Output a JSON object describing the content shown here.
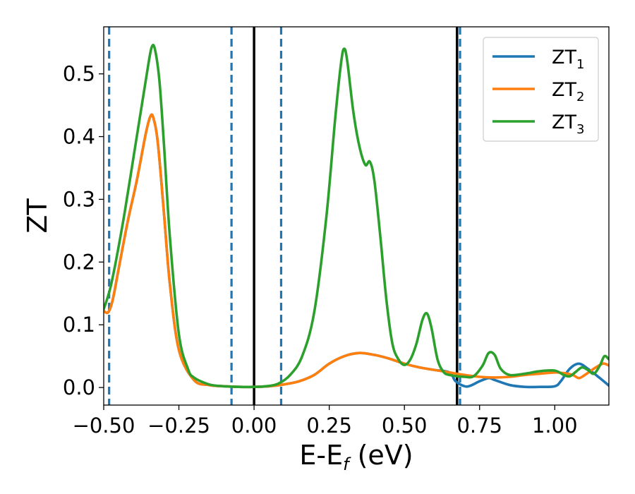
{
  "chart_data": {
    "type": "line",
    "title": "",
    "xlabel": "E-E",
    "xlabel_sub": "f",
    "xlabel_suffix": " (eV)",
    "ylabel": "ZT",
    "xlim": [
      -0.5,
      1.18
    ],
    "ylim": [
      -0.028,
      0.575
    ],
    "x_ticks": [
      -0.5,
      -0.25,
      0.0,
      0.25,
      0.5,
      0.75,
      1.0
    ],
    "x_tick_labels": [
      "−0.50",
      "−0.25",
      "0.00",
      "0.25",
      "0.50",
      "0.75",
      "1.00"
    ],
    "y_ticks": [
      0.0,
      0.1,
      0.2,
      0.3,
      0.4,
      0.5
    ],
    "y_tick_labels": [
      "0.0",
      "0.1",
      "0.2",
      "0.3",
      "0.4",
      "0.5"
    ],
    "grid": false,
    "legend_placement": "top-right",
    "vertical_lines": [
      {
        "x": -0.482,
        "style": "dashed",
        "color": "#1f77b4"
      },
      {
        "x": -0.075,
        "style": "dashed",
        "color": "#1f77b4"
      },
      {
        "x": 0.0,
        "style": "solid",
        "color": "#000000"
      },
      {
        "x": 0.09,
        "style": "dashed",
        "color": "#1f77b4"
      },
      {
        "x": 0.675,
        "style": "solid",
        "color": "#000000"
      },
      {
        "x": 0.685,
        "style": "dashed",
        "color": "#1f77b4"
      }
    ],
    "series": [
      {
        "name": "ZT",
        "name_sub": "1",
        "color": "#1f77b4",
        "x": [
          -0.5,
          -0.485,
          -0.47,
          -0.45,
          -0.42,
          -0.39,
          -0.36,
          -0.345,
          -0.335,
          -0.32,
          -0.3,
          -0.28,
          -0.25,
          -0.2,
          -0.15,
          -0.1,
          -0.05,
          0.0,
          0.05,
          0.1,
          0.15,
          0.2,
          0.25,
          0.3,
          0.35,
          0.4,
          0.45,
          0.5,
          0.55,
          0.6,
          0.65,
          0.67,
          0.7,
          0.72,
          0.75,
          0.78,
          0.8,
          0.85,
          0.9,
          0.95,
          1.0,
          1.02,
          1.05,
          1.08,
          1.11,
          1.15,
          1.18
        ],
        "y": [
          0.122,
          0.12,
          0.14,
          0.19,
          0.265,
          0.33,
          0.405,
          0.432,
          0.43,
          0.39,
          0.28,
          0.165,
          0.06,
          0.012,
          0.004,
          0.002,
          0.001,
          0.001,
          0.002,
          0.005,
          0.01,
          0.02,
          0.038,
          0.05,
          0.055,
          0.052,
          0.046,
          0.038,
          0.032,
          0.028,
          0.024,
          0.01,
          0.002,
          0.003,
          0.01,
          0.015,
          0.012,
          0.004,
          0.001,
          0.001,
          0.002,
          0.01,
          0.03,
          0.038,
          0.03,
          0.015,
          0.003
        ]
      },
      {
        "name": "ZT",
        "name_sub": "2",
        "color": "#ff7f0e",
        "x": [
          -0.5,
          -0.485,
          -0.47,
          -0.45,
          -0.42,
          -0.39,
          -0.36,
          -0.345,
          -0.335,
          -0.32,
          -0.3,
          -0.28,
          -0.25,
          -0.2,
          -0.15,
          -0.1,
          -0.05,
          0.0,
          0.05,
          0.1,
          0.15,
          0.2,
          0.25,
          0.3,
          0.35,
          0.4,
          0.45,
          0.5,
          0.55,
          0.6,
          0.65,
          0.7,
          0.75,
          0.8,
          0.85,
          0.9,
          0.95,
          1.0,
          1.03,
          1.06,
          1.08,
          1.1,
          1.13,
          1.16,
          1.18
        ],
        "y": [
          0.122,
          0.12,
          0.14,
          0.19,
          0.265,
          0.33,
          0.405,
          0.432,
          0.43,
          0.39,
          0.28,
          0.165,
          0.06,
          0.012,
          0.004,
          0.002,
          0.001,
          0.001,
          0.002,
          0.005,
          0.01,
          0.02,
          0.038,
          0.05,
          0.055,
          0.052,
          0.046,
          0.038,
          0.032,
          0.028,
          0.024,
          0.02,
          0.017,
          0.016,
          0.017,
          0.02,
          0.022,
          0.024,
          0.023,
          0.02,
          0.015,
          0.02,
          0.03,
          0.038,
          0.035
        ]
      },
      {
        "name": "ZT",
        "name_sub": "3",
        "color": "#2ca02c",
        "x": [
          -0.5,
          -0.48,
          -0.46,
          -0.43,
          -0.4,
          -0.37,
          -0.35,
          -0.34,
          -0.33,
          -0.315,
          -0.3,
          -0.28,
          -0.25,
          -0.22,
          -0.2,
          -0.15,
          -0.1,
          -0.05,
          0.0,
          0.04,
          0.08,
          0.12,
          0.16,
          0.2,
          0.24,
          0.27,
          0.29,
          0.3,
          0.31,
          0.33,
          0.35,
          0.37,
          0.385,
          0.4,
          0.42,
          0.44,
          0.46,
          0.48,
          0.5,
          0.52,
          0.54,
          0.56,
          0.575,
          0.59,
          0.61,
          0.63,
          0.65,
          0.7,
          0.73,
          0.76,
          0.78,
          0.8,
          0.82,
          0.85,
          0.9,
          0.95,
          1.0,
          1.03,
          1.05,
          1.07,
          1.09,
          1.11,
          1.13,
          1.15,
          1.165,
          1.18
        ],
        "y": [
          0.125,
          0.155,
          0.2,
          0.28,
          0.37,
          0.46,
          0.52,
          0.543,
          0.54,
          0.49,
          0.39,
          0.24,
          0.085,
          0.03,
          0.016,
          0.005,
          0.002,
          0.001,
          0.001,
          0.002,
          0.006,
          0.02,
          0.05,
          0.12,
          0.27,
          0.43,
          0.52,
          0.54,
          0.52,
          0.44,
          0.385,
          0.355,
          0.36,
          0.33,
          0.24,
          0.14,
          0.07,
          0.045,
          0.036,
          0.045,
          0.07,
          0.108,
          0.118,
          0.095,
          0.045,
          0.025,
          0.02,
          0.017,
          0.018,
          0.035,
          0.055,
          0.052,
          0.03,
          0.02,
          0.022,
          0.026,
          0.027,
          0.02,
          0.018,
          0.025,
          0.032,
          0.028,
          0.022,
          0.035,
          0.05,
          0.045
        ]
      }
    ]
  }
}
